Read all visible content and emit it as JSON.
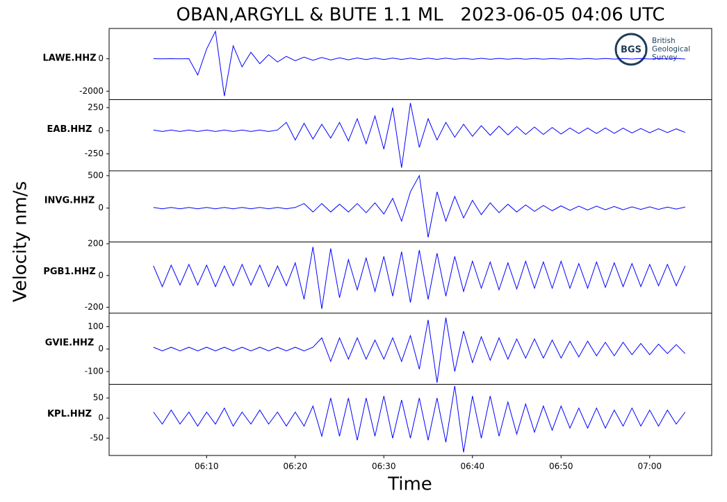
{
  "chart_data": {
    "type": "seismogram",
    "title": "OBAN,ARGYLL & BUTE 1.1 ML   2023-06-05 04:06 UTC",
    "xlabel": "Time",
    "ylabel": "Velocity nm/s",
    "logo": {
      "mark": "BGS",
      "lines": [
        "British",
        "Geological",
        "Survey"
      ]
    },
    "xlim": [
      "05:59",
      "07:07"
    ],
    "xticks": [
      "06:10",
      "06:20",
      "06:30",
      "06:40",
      "06:50",
      "07:00"
    ],
    "x": [
      "06:04",
      "06:05",
      "06:06",
      "06:07",
      "06:08",
      "06:09",
      "06:10",
      "06:11",
      "06:12",
      "06:13",
      "06:14",
      "06:15",
      "06:16",
      "06:17",
      "06:18",
      "06:19",
      "06:20",
      "06:21",
      "06:22",
      "06:23",
      "06:24",
      "06:25",
      "06:26",
      "06:27",
      "06:28",
      "06:29",
      "06:30",
      "06:31",
      "06:32",
      "06:33",
      "06:34",
      "06:35",
      "06:36",
      "06:37",
      "06:38",
      "06:39",
      "06:40",
      "06:41",
      "06:42",
      "06:43",
      "06:44",
      "06:45",
      "06:46",
      "06:47",
      "06:48",
      "06:49",
      "06:50",
      "06:51",
      "06:52",
      "06:53",
      "06:54",
      "06:55",
      "06:56",
      "06:57",
      "06:58",
      "06:59",
      "07:00",
      "07:01",
      "07:02",
      "07:03",
      "07:04"
    ],
    "series": [
      {
        "name": "LAWE.HHZ",
        "color": "#0000ff",
        "ylim": [
          -2520,
          1870
        ],
        "yticks": [
          -2000,
          0
        ],
        "values": [
          5,
          -5,
          5,
          -5,
          5,
          -1000,
          600,
          1700,
          -2300,
          800,
          -500,
          400,
          -300,
          250,
          -200,
          150,
          -120,
          100,
          -90,
          80,
          -70,
          60,
          -60,
          50,
          -50,
          50,
          -45,
          45,
          -40,
          40,
          -40,
          35,
          -35,
          35,
          -30,
          30,
          -30,
          30,
          -30,
          25,
          -25,
          25,
          -25,
          25,
          -25,
          20,
          -20,
          20,
          -20,
          20,
          -20,
          20,
          -20,
          15,
          -15,
          15,
          -15,
          15,
          -15,
          15,
          -15
        ]
      },
      {
        "name": "EAB.HHZ",
        "color": "#0000ff",
        "ylim": [
          -433,
          336
        ],
        "yticks": [
          -250,
          0,
          250
        ],
        "values": [
          8,
          -8,
          8,
          -8,
          8,
          -8,
          8,
          -8,
          8,
          -8,
          8,
          -8,
          8,
          -8,
          8,
          90,
          -100,
          80,
          -90,
          70,
          -80,
          90,
          -110,
          130,
          -140,
          160,
          -200,
          250,
          -400,
          300,
          -180,
          130,
          -100,
          90,
          -70,
          70,
          -60,
          55,
          -50,
          50,
          -45,
          45,
          -40,
          40,
          -40,
          35,
          -35,
          30,
          -30,
          30,
          -30,
          30,
          -28,
          28,
          -25,
          25,
          -22,
          22,
          -20,
          20,
          -18
        ]
      },
      {
        "name": "INVG.HHZ",
        "color": "#0000ff",
        "ylim": [
          -521,
          574
        ],
        "yticks": [
          0,
          500
        ],
        "values": [
          10,
          -10,
          10,
          -10,
          10,
          -10,
          10,
          -10,
          10,
          -10,
          10,
          -10,
          10,
          -10,
          10,
          -10,
          10,
          70,
          -60,
          70,
          -60,
          60,
          -60,
          70,
          -70,
          80,
          -90,
          150,
          -200,
          250,
          500,
          -450,
          250,
          -200,
          180,
          -150,
          120,
          -100,
          80,
          -70,
          60,
          -60,
          50,
          -50,
          40,
          -40,
          35,
          -35,
          30,
          -30,
          30,
          -25,
          25,
          -25,
          20,
          -20,
          20,
          -20,
          15,
          -15,
          15
        ]
      },
      {
        "name": "PGB1.HHZ",
        "color": "#0000ff",
        "ylim": [
          -237,
          211
        ],
        "yticks": [
          -200,
          0,
          200
        ],
        "values": [
          60,
          -70,
          65,
          -60,
          70,
          -60,
          65,
          -70,
          60,
          -65,
          70,
          -60,
          65,
          -70,
          60,
          -65,
          80,
          -150,
          180,
          -210,
          170,
          -140,
          100,
          -90,
          110,
          -100,
          120,
          -130,
          150,
          -170,
          160,
          -150,
          140,
          -130,
          120,
          -100,
          90,
          -80,
          85,
          -90,
          80,
          -85,
          90,
          -80,
          85,
          -80,
          90,
          -80,
          75,
          -80,
          85,
          -75,
          80,
          -70,
          75,
          -70,
          70,
          -65,
          70,
          -65,
          60
        ]
      },
      {
        "name": "GVIE.HHZ",
        "color": "#0000ff",
        "ylim": [
          -157,
          160
        ],
        "yticks": [
          -100,
          0,
          100
        ],
        "values": [
          8,
          -8,
          8,
          -8,
          8,
          -8,
          8,
          -8,
          8,
          -8,
          8,
          -8,
          8,
          -8,
          8,
          -8,
          8,
          -8,
          8,
          50,
          -55,
          50,
          -45,
          50,
          -45,
          40,
          -45,
          50,
          -55,
          60,
          -90,
          130,
          -150,
          140,
          -100,
          80,
          -60,
          55,
          -50,
          50,
          -45,
          45,
          -40,
          45,
          -40,
          40,
          -40,
          35,
          -35,
          35,
          -30,
          30,
          -30,
          30,
          -25,
          25,
          -25,
          22,
          -20,
          20,
          -20
        ]
      },
      {
        "name": "KPL.HHZ",
        "color": "#0000ff",
        "ylim": [
          -93,
          84
        ],
        "yticks": [
          -50,
          0,
          50
        ],
        "values": [
          15,
          -15,
          20,
          -15,
          15,
          -20,
          15,
          -15,
          25,
          -20,
          15,
          -15,
          20,
          -15,
          15,
          -20,
          15,
          -20,
          30,
          -45,
          50,
          -45,
          50,
          -55,
          50,
          -45,
          55,
          -50,
          45,
          -50,
          50,
          -55,
          50,
          -60,
          80,
          -85,
          55,
          -50,
          55,
          -45,
          40,
          -40,
          35,
          -35,
          30,
          -30,
          30,
          -25,
          25,
          -25,
          25,
          -25,
          20,
          -20,
          25,
          -20,
          20,
          -20,
          20,
          -15,
          15
        ]
      }
    ]
  }
}
